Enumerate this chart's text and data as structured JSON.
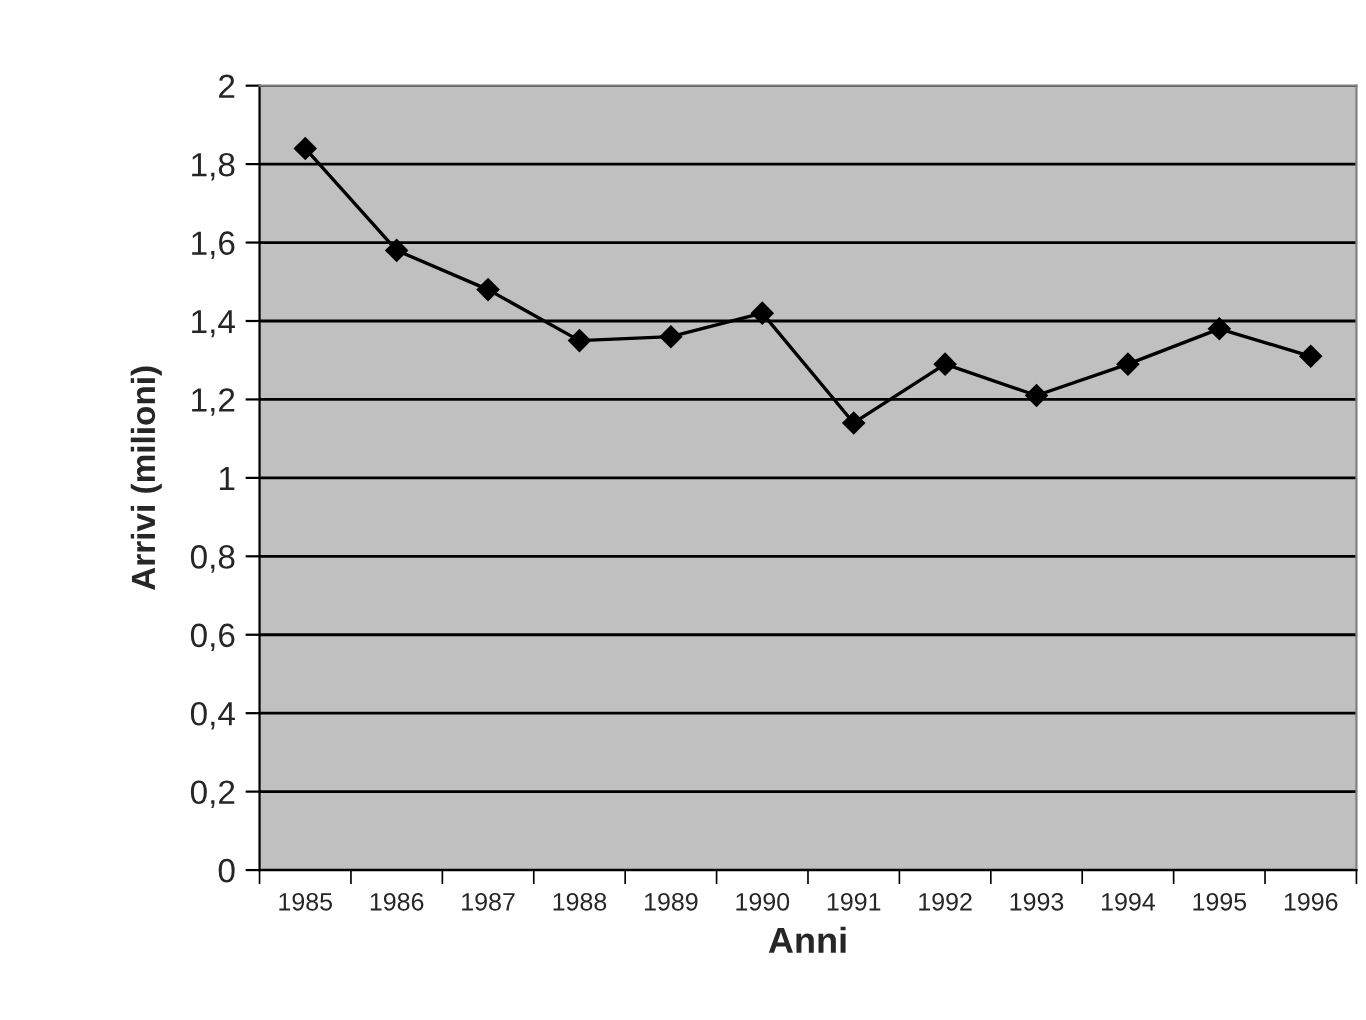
{
  "chart_data": {
    "type": "line",
    "xlabel": "Anni",
    "ylabel": "Arrivi (milioni)",
    "categories": [
      "1985",
      "1986",
      "1987",
      "1988",
      "1989",
      "1990",
      "1991",
      "1992",
      "1993",
      "1994",
      "1995",
      "1996"
    ],
    "series": [
      {
        "color": "#000000",
        "values": [
          1.84,
          1.58,
          1.48,
          1.35,
          1.36,
          1.42,
          1.14,
          1.29,
          1.21,
          1.29,
          1.38,
          1.31
        ]
      }
    ],
    "ylim": [
      0,
      2
    ],
    "yticks": [
      {
        "value": 0,
        "label": "0"
      },
      {
        "value": 0.2,
        "label": "0,2"
      },
      {
        "value": 0.4,
        "label": "0,4"
      },
      {
        "value": 0.6,
        "label": "0,6"
      },
      {
        "value": 0.8,
        "label": "0,8"
      },
      {
        "value": 1,
        "label": "1"
      },
      {
        "value": 1.2,
        "label": "1,2"
      },
      {
        "value": 1.4,
        "label": "1,4"
      },
      {
        "value": 1.6,
        "label": "1,6"
      },
      {
        "value": 1.8,
        "label": "1,8"
      },
      {
        "value": 2,
        "label": "2"
      }
    ],
    "grid": "y",
    "marker": "diamond",
    "line_style": "solid"
  }
}
